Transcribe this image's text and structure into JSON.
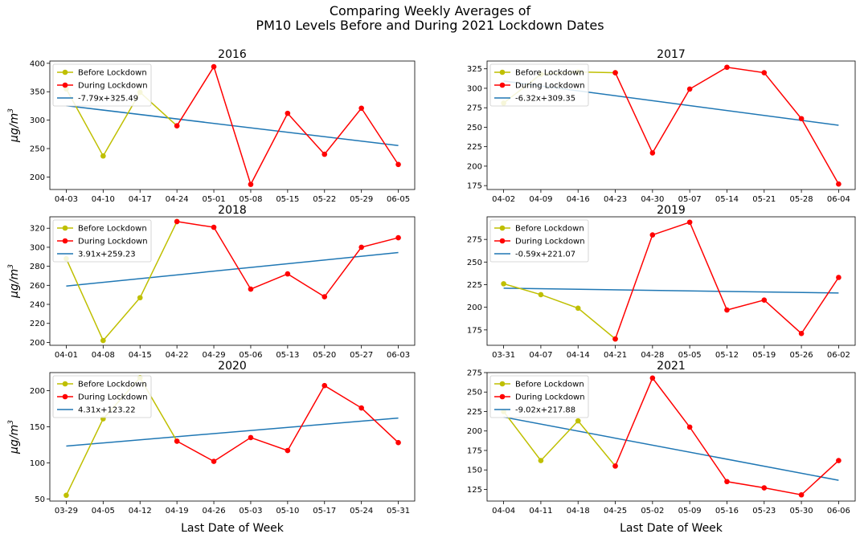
{
  "figure": {
    "title_line1": "Comparing Weekly Averages of",
    "title_line2": "PM10 Levels Before and During 2021 Lockdown Dates",
    "xlabel": "Last Date of Week",
    "ylabel_base": "μg/m",
    "ylabel_sup": "3"
  },
  "legend": {
    "before": "Before Lockdown",
    "during": "During Lockdown"
  },
  "colors": {
    "before": "#bfbf00",
    "during": "#ff0000",
    "trend": "#1f77b4"
  },
  "chart_data": [
    {
      "type": "line",
      "title": "2016",
      "categories": [
        "04-03",
        "04-10",
        "04-17",
        "04-24",
        "05-01",
        "05-08",
        "05-15",
        "05-22",
        "05-29",
        "06-05"
      ],
      "before_lockdown": [
        355,
        237,
        349,
        290
      ],
      "during_lockdown_start_index": 3,
      "during_lockdown": [
        290,
        394,
        187,
        312,
        240,
        321,
        222
      ],
      "trend_label": "-7.79x+325.49",
      "trend": {
        "slope": -7.79,
        "intercept": 325.49
      },
      "ylim": [
        178,
        404
      ],
      "yticks": [
        200,
        250,
        300,
        350,
        400
      ]
    },
    {
      "type": "line",
      "title": "2017",
      "categories": [
        "04-02",
        "04-09",
        "04-16",
        "04-23",
        "04-30",
        "05-07",
        "05-14",
        "05-21",
        "05-28",
        "06-04"
      ],
      "before_lockdown": [
        281,
        318,
        321,
        320
      ],
      "during_lockdown_start_index": 3,
      "during_lockdown": [
        320,
        217,
        299,
        327,
        320,
        261,
        177
      ],
      "trend_label": "-6.32x+309.35",
      "trend": {
        "slope": -6.32,
        "intercept": 309.35
      },
      "ylim": [
        170,
        335
      ],
      "yticks": [
        175,
        200,
        225,
        250,
        275,
        300,
        325
      ]
    },
    {
      "type": "line",
      "title": "2018",
      "categories": [
        "04-01",
        "04-08",
        "04-15",
        "04-22",
        "04-29",
        "05-06",
        "05-13",
        "05-20",
        "05-27",
        "06-03"
      ],
      "before_lockdown": [
        288,
        202,
        247,
        327
      ],
      "during_lockdown_start_index": 3,
      "during_lockdown": [
        327,
        321,
        256,
        272,
        248,
        300,
        310
      ],
      "trend_label": "3.91x+259.23",
      "trend": {
        "slope": 3.91,
        "intercept": 259.23
      },
      "ylim": [
        197,
        332
      ],
      "yticks": [
        200,
        220,
        240,
        260,
        280,
        300,
        320
      ]
    },
    {
      "type": "line",
      "title": "2019",
      "categories": [
        "03-31",
        "04-07",
        "04-14",
        "04-21",
        "04-28",
        "05-05",
        "05-12",
        "05-19",
        "05-26",
        "06-02"
      ],
      "before_lockdown": [
        226,
        214,
        199,
        165
      ],
      "during_lockdown_start_index": 3,
      "during_lockdown": [
        165,
        280,
        294,
        197,
        208,
        171,
        233
      ],
      "trend_label": "-0.59x+221.07",
      "trend": {
        "slope": -0.59,
        "intercept": 221.07
      },
      "ylim": [
        158,
        300
      ],
      "yticks": [
        175,
        200,
        225,
        250,
        275
      ]
    },
    {
      "type": "line",
      "title": "2020",
      "categories": [
        "03-29",
        "04-05",
        "04-12",
        "04-19",
        "04-26",
        "05-03",
        "05-10",
        "05-17",
        "05-24",
        "05-31"
      ],
      "before_lockdown": [
        55,
        161,
        218,
        130
      ],
      "during_lockdown_start_index": 3,
      "during_lockdown": [
        130,
        102,
        135,
        117,
        207,
        176,
        128
      ],
      "trend_label": "4.31x+123.22",
      "trend": {
        "slope": 4.31,
        "intercept": 123.22
      },
      "ylim": [
        47,
        225
      ],
      "yticks": [
        50,
        100,
        150,
        200
      ]
    },
    {
      "type": "line",
      "title": "2021",
      "categories": [
        "04-04",
        "04-11",
        "04-18",
        "04-25",
        "05-02",
        "05-09",
        "05-16",
        "05-23",
        "05-30",
        "06-06"
      ],
      "before_lockdown": [
        225,
        162,
        213,
        155
      ],
      "during_lockdown_start_index": 3,
      "during_lockdown": [
        155,
        268,
        205,
        135,
        127,
        118,
        162
      ],
      "trend_label": "-9.02x+217.88",
      "trend": {
        "slope": -9.02,
        "intercept": 217.88
      },
      "ylim": [
        110,
        275
      ],
      "yticks": [
        125,
        150,
        175,
        200,
        225,
        250,
        275
      ]
    }
  ]
}
